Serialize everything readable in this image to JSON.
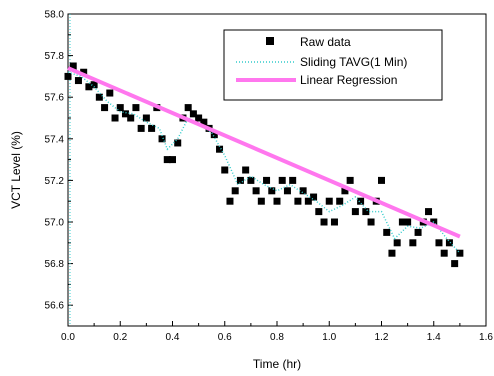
{
  "chart_data": {
    "type": "scatter",
    "title": "",
    "xlabel": "Time (hr)",
    "ylabel": "VCT Level (%)",
    "xlim": [
      0.0,
      1.6
    ],
    "ylim": [
      56.5,
      58.0
    ],
    "xticks": [
      "0.0",
      "0.2",
      "0.4",
      "0.6",
      "0.8",
      "1.0",
      "1.2",
      "1.4",
      "1.6"
    ],
    "yticks": [
      "56.6",
      "56.8",
      "57.0",
      "57.2",
      "57.4",
      "57.6",
      "57.8",
      "58.0"
    ],
    "grid": false,
    "legend_position": "top-right",
    "series": [
      {
        "name": "Raw data",
        "kind": "scatter",
        "marker": "square",
        "color": "#000000",
        "x": [
          0.0,
          0.02,
          0.04,
          0.06,
          0.08,
          0.1,
          0.12,
          0.14,
          0.16,
          0.18,
          0.2,
          0.22,
          0.24,
          0.26,
          0.28,
          0.3,
          0.32,
          0.34,
          0.36,
          0.38,
          0.4,
          0.42,
          0.44,
          0.46,
          0.48,
          0.5,
          0.52,
          0.54,
          0.56,
          0.58,
          0.6,
          0.62,
          0.64,
          0.66,
          0.68,
          0.7,
          0.72,
          0.74,
          0.76,
          0.78,
          0.8,
          0.82,
          0.84,
          0.86,
          0.88,
          0.9,
          0.92,
          0.94,
          0.96,
          0.98,
          1.0,
          1.02,
          1.04,
          1.06,
          1.08,
          1.1,
          1.12,
          1.14,
          1.16,
          1.18,
          1.2,
          1.22,
          1.24,
          1.26,
          1.28,
          1.3,
          1.32,
          1.34,
          1.36,
          1.38,
          1.4,
          1.42,
          1.44,
          1.46,
          1.48,
          1.5
        ],
        "y": [
          57.7,
          57.75,
          57.68,
          57.72,
          57.65,
          57.66,
          57.6,
          57.55,
          57.62,
          57.5,
          57.55,
          57.52,
          57.5,
          57.55,
          57.45,
          57.5,
          57.45,
          57.55,
          57.4,
          57.3,
          57.3,
          57.38,
          57.5,
          57.55,
          57.52,
          57.5,
          57.48,
          57.45,
          57.42,
          57.35,
          57.25,
          57.1,
          57.15,
          57.2,
          57.25,
          57.2,
          57.15,
          57.1,
          57.2,
          57.15,
          57.1,
          57.2,
          57.15,
          57.2,
          57.1,
          57.15,
          57.1,
          57.12,
          57.05,
          57.0,
          57.1,
          57.0,
          57.1,
          57.15,
          57.2,
          57.05,
          57.1,
          57.05,
          57.0,
          57.1,
          57.2,
          56.95,
          56.85,
          56.9,
          57.0,
          57.0,
          56.9,
          56.95,
          57.0,
          57.05,
          57.0,
          56.9,
          56.85,
          56.9,
          56.8,
          56.85
        ]
      },
      {
        "name": "Sliding TAVG(1 Min)",
        "kind": "line",
        "style": "dotted",
        "color": "#33cccc",
        "x": [
          0.0,
          0.05,
          0.1,
          0.15,
          0.2,
          0.25,
          0.3,
          0.35,
          0.38,
          0.42,
          0.46,
          0.5,
          0.55,
          0.6,
          0.65,
          0.7,
          0.75,
          0.8,
          0.85,
          0.9,
          0.95,
          1.0,
          1.05,
          1.1,
          1.15,
          1.2,
          1.25,
          1.3,
          1.35,
          1.4,
          1.45,
          1.5
        ],
        "y": [
          57.72,
          57.7,
          57.65,
          57.58,
          57.53,
          57.52,
          57.48,
          57.45,
          57.35,
          57.4,
          57.5,
          57.47,
          57.43,
          57.32,
          57.18,
          57.22,
          57.18,
          57.15,
          57.18,
          57.14,
          57.1,
          57.05,
          57.08,
          57.12,
          57.05,
          57.05,
          56.92,
          56.98,
          56.97,
          57.0,
          56.92,
          56.85
        ]
      },
      {
        "name": "Linear Regression",
        "kind": "line",
        "style": "solid",
        "color": "#ff77ee",
        "x": [
          0.0,
          1.5
        ],
        "y": [
          57.74,
          56.93
        ]
      }
    ]
  }
}
